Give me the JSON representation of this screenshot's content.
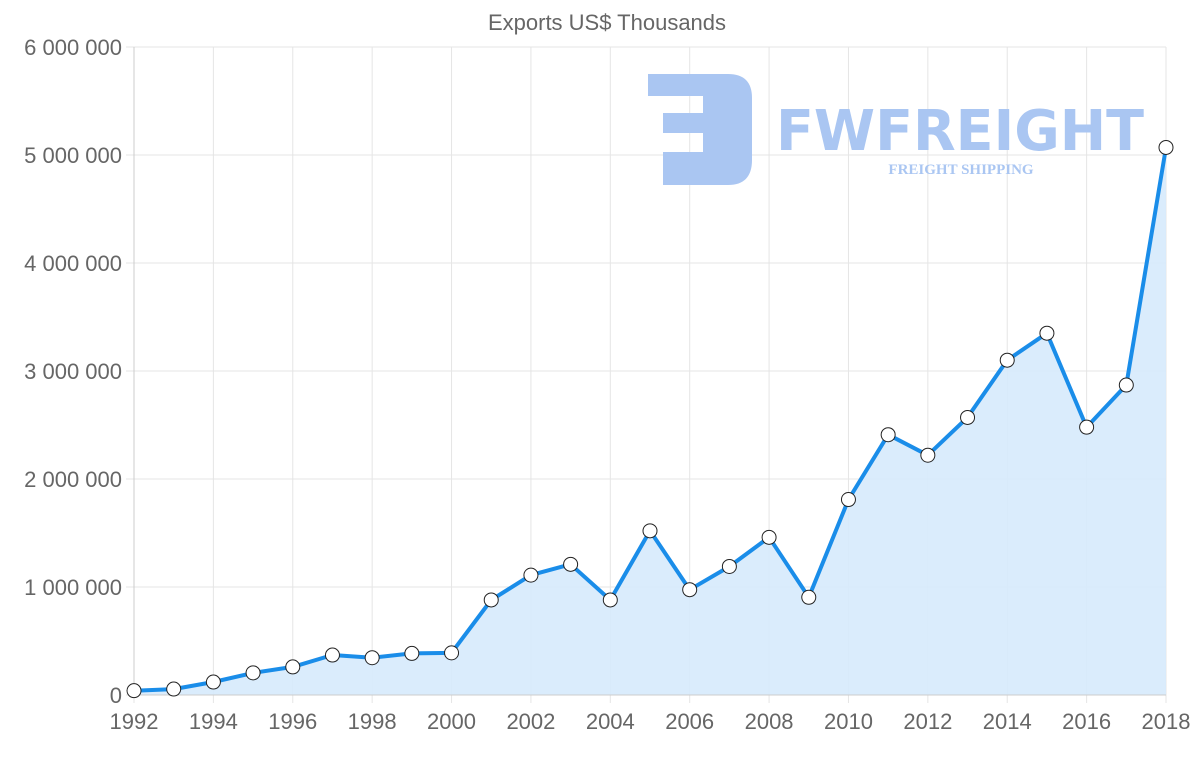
{
  "chart_data": {
    "type": "line",
    "title": "Exports US$ Thousands",
    "xlabel": "",
    "ylabel": "",
    "x": [
      1992,
      1993,
      1994,
      1995,
      1996,
      1997,
      1998,
      1999,
      2000,
      2001,
      2002,
      2003,
      2004,
      2005,
      2006,
      2007,
      2008,
      2009,
      2010,
      2011,
      2012,
      2013,
      2014,
      2015,
      2016,
      2017,
      2018
    ],
    "series": [
      {
        "name": "Exports US$ Thousands",
        "values": [
          40000,
          55000,
          120000,
          205000,
          260000,
          370000,
          345000,
          385000,
          390000,
          880000,
          1110000,
          1210000,
          880000,
          1520000,
          975000,
          1190000,
          1460000,
          905000,
          1810000,
          2410000,
          2220000,
          2570000,
          3100000,
          3350000,
          2480000,
          2870000,
          5070000
        ],
        "color": "#1a8de9",
        "fill": "#d6eafc",
        "marker": "circle-white"
      }
    ],
    "ylim": [
      0,
      6000000
    ],
    "yticks": [
      0,
      1000000,
      2000000,
      3000000,
      4000000,
      5000000,
      6000000
    ],
    "ytick_labels": [
      "0",
      "1 000 000",
      "2 000 000",
      "3 000 000",
      "4 000 000",
      "5 000 000",
      "6 000 000"
    ],
    "xticks": [
      1992,
      1994,
      1996,
      1998,
      2000,
      2002,
      2004,
      2006,
      2008,
      2010,
      2012,
      2014,
      2016,
      2018
    ],
    "xtick_labels": [
      "1992",
      "1994",
      "1996",
      "1998",
      "2000",
      "2002",
      "2004",
      "2006",
      "2008",
      "2010",
      "2012",
      "2014",
      "2016",
      "2018"
    ],
    "grid": true,
    "legend": "none",
    "area_fill": true
  },
  "watermark": {
    "brand": "FWFREIGHT",
    "tagline": "FREIGHT SHIPPING",
    "color": "#aac6f2"
  }
}
